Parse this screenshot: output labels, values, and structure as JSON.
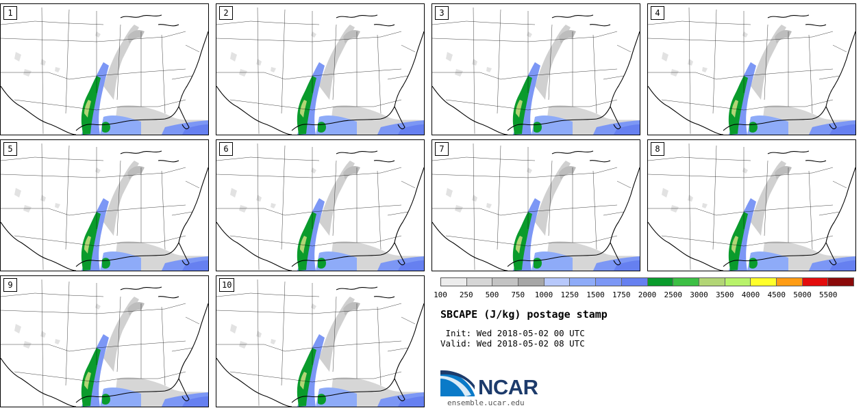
{
  "panels": [
    {
      "label": "1"
    },
    {
      "label": "2"
    },
    {
      "label": "3"
    },
    {
      "label": "4"
    },
    {
      "label": "5"
    },
    {
      "label": "6"
    },
    {
      "label": "7"
    },
    {
      "label": "8"
    },
    {
      "label": "9"
    },
    {
      "label": "10"
    }
  ],
  "colorbar": {
    "colors": [
      "#ececec",
      "#d6d6d6",
      "#c3c3c3",
      "#a6a6a6",
      "#b7c8fb",
      "#8eabf8",
      "#7c97f5",
      "#6680f0",
      "#0a9b2c",
      "#3cbf44",
      "#b2d575",
      "#b8f26a",
      "#ffff2a",
      "#ff9c14",
      "#e30d0d",
      "#8b0a0a"
    ],
    "tick_labels": [
      "100",
      "250",
      "500",
      "750",
      "1000",
      "1250",
      "1500",
      "1750",
      "2000",
      "2500",
      "3000",
      "3500",
      "4000",
      "4500",
      "5000",
      "5500"
    ]
  },
  "title": "SBCAPE (J/kg) postage stamp",
  "init_label": " Init:",
  "init_value": "Wed 2018-05-02 00 UTC",
  "valid_label": "Valid:",
  "valid_value": "Wed 2018-05-02 08 UTC",
  "logo": {
    "text": "NCAR",
    "url": "ensemble.ucar.edu"
  }
}
